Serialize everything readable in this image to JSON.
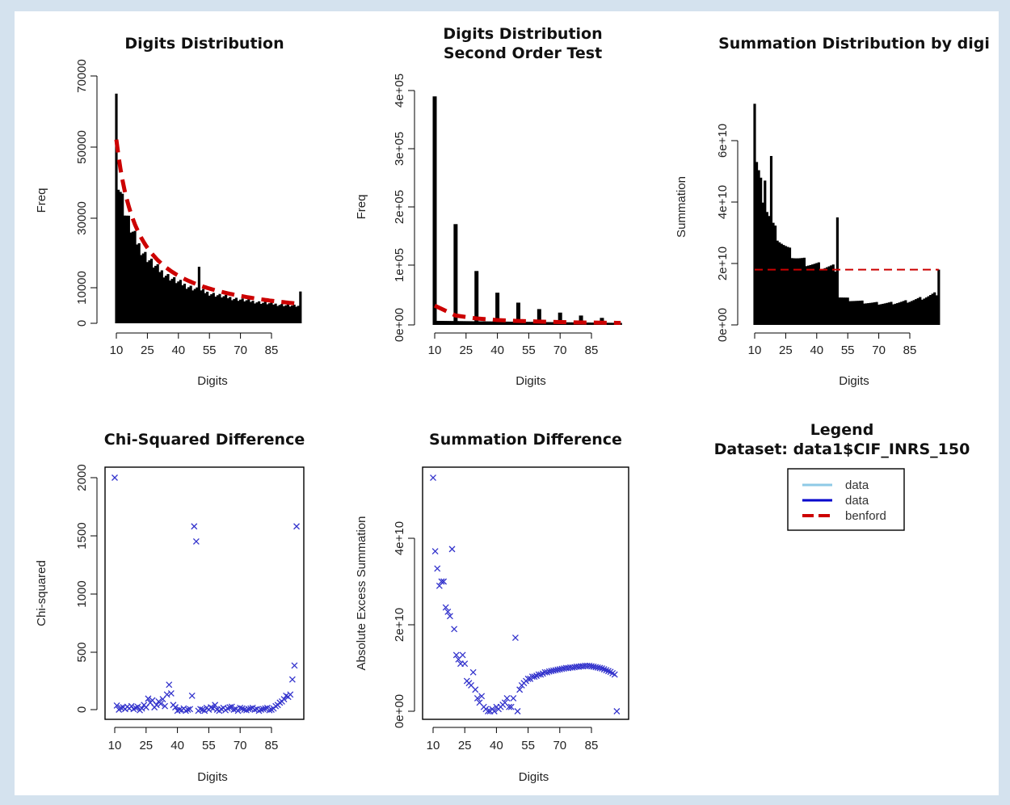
{
  "colors": {
    "bars": "#000000",
    "benford": "#cc0000",
    "points": "#3333cc",
    "data_light": "#8ecae6",
    "data_dark": "#0000cc"
  },
  "chart_data": [
    {
      "type": "bar",
      "title": "Digits Distribution",
      "xlabel": "Digits",
      "ylabel": "Freq",
      "x_ticks": [
        "10",
        "25",
        "40",
        "55",
        "70",
        "85"
      ],
      "y_ticks": [
        "0",
        "10000",
        "30000",
        "50000",
        "70000"
      ],
      "y_tick_values": [
        0,
        10000,
        30000,
        50000,
        70000
      ],
      "ylim": [
        0,
        70000
      ],
      "x_start": 10,
      "x_end": 99,
      "overlay": "benford",
      "spikes": [
        {
          "x": 10,
          "value": 65000
        },
        {
          "x": 50,
          "value": 16000
        },
        {
          "x": 99,
          "value": 9000
        }
      ],
      "legend": null
    },
    {
      "type": "bar",
      "title": "Digits Distribution",
      "subtitle": "Second Order Test",
      "xlabel": "Digits",
      "ylabel": "Freq",
      "x_ticks": [
        "10",
        "25",
        "40",
        "55",
        "70",
        "85"
      ],
      "y_ticks": [
        "0e+00",
        "1e+05",
        "2e+05",
        "3e+05",
        "4e+05"
      ],
      "y_tick_values": [
        0,
        100000,
        200000,
        300000,
        400000
      ],
      "ylim": [
        0,
        400000
      ],
      "x_start": 10,
      "x_end": 99,
      "spikes": [
        {
          "x": 10,
          "value": 390000
        },
        {
          "x": 20,
          "value": 172000
        },
        {
          "x": 30,
          "value": 92000
        },
        {
          "x": 40,
          "value": 55000
        },
        {
          "x": 50,
          "value": 38000
        },
        {
          "x": 60,
          "value": 27000
        },
        {
          "x": 70,
          "value": 21000
        },
        {
          "x": 80,
          "value": 16000
        },
        {
          "x": 90,
          "value": 12000
        }
      ],
      "benford_points": [
        {
          "x": 10,
          "value": 33000
        },
        {
          "x": 20,
          "value": 16000
        },
        {
          "x": 30,
          "value": 11000
        },
        {
          "x": 40,
          "value": 8300
        },
        {
          "x": 50,
          "value": 6700
        },
        {
          "x": 60,
          "value": 5600
        },
        {
          "x": 70,
          "value": 4800
        },
        {
          "x": 80,
          "value": 4200
        },
        {
          "x": 90,
          "value": 3700
        },
        {
          "x": 99,
          "value": 3400
        }
      ]
    },
    {
      "type": "bar",
      "title": "Summation Distribution by digi",
      "xlabel": "Digits",
      "ylabel": "Summation",
      "x_ticks": [
        "10",
        "25",
        "40",
        "55",
        "70",
        "85"
      ],
      "y_ticks": [
        "0e+00",
        "2e+10",
        "4e+10",
        "6e+10"
      ],
      "y_tick_values": [
        0,
        20000000000,
        40000000000,
        60000000000
      ],
      "ylim": [
        0,
        60000000000
      ],
      "x_start": 10,
      "x_end": 99,
      "benford_line": 18000000000,
      "spikes": [
        {
          "x": 10,
          "value": 72000000000
        },
        {
          "x": 15,
          "value": 47000000000
        },
        {
          "x": 18,
          "value": 55000000000
        },
        {
          "x": 50,
          "value": 35000000000
        },
        {
          "x": 99,
          "value": 18000000000
        }
      ]
    },
    {
      "type": "scatter",
      "title": "Chi-Squared Difference",
      "xlabel": "Digits",
      "ylabel": "Chi-squared",
      "x_ticks": [
        "10",
        "25",
        "40",
        "55",
        "70",
        "85"
      ],
      "y_ticks": [
        "0",
        "500",
        "1000",
        "1500",
        "2000"
      ],
      "y_tick_values": [
        0,
        500,
        1000,
        1500,
        2000
      ],
      "ylim": [
        -50,
        2050
      ],
      "points": [
        [
          10,
          2000
        ],
        [
          11,
          35
        ],
        [
          12,
          0
        ],
        [
          13,
          15
        ],
        [
          14,
          20
        ],
        [
          15,
          5
        ],
        [
          16,
          25
        ],
        [
          17,
          10
        ],
        [
          18,
          30
        ],
        [
          19,
          5
        ],
        [
          20,
          15
        ],
        [
          21,
          25
        ],
        [
          22,
          -5
        ],
        [
          23,
          10
        ],
        [
          24,
          40
        ],
        [
          25,
          20
        ],
        [
          26,
          95
        ],
        [
          27,
          60
        ],
        [
          28,
          80
        ],
        [
          29,
          20
        ],
        [
          30,
          40
        ],
        [
          31,
          70
        ],
        [
          32,
          50
        ],
        [
          33,
          90
        ],
        [
          34,
          30
        ],
        [
          35,
          130
        ],
        [
          36,
          215
        ],
        [
          37,
          140
        ],
        [
          38,
          40
        ],
        [
          39,
          20
        ],
        [
          40,
          -10
        ],
        [
          41,
          0
        ],
        [
          42,
          -5
        ],
        [
          43,
          10
        ],
        [
          44,
          -10
        ],
        [
          45,
          0
        ],
        [
          46,
          5
        ],
        [
          47,
          120
        ],
        [
          48,
          1580
        ],
        [
          49,
          1450
        ],
        [
          50,
          -10
        ],
        [
          51,
          5
        ],
        [
          52,
          0
        ],
        [
          53,
          -10
        ],
        [
          54,
          15
        ],
        [
          55,
          0
        ],
        [
          56,
          20
        ],
        [
          57,
          10
        ],
        [
          58,
          40
        ],
        [
          59,
          0
        ],
        [
          60,
          -10
        ],
        [
          61,
          5
        ],
        [
          62,
          15
        ],
        [
          63,
          -5
        ],
        [
          64,
          10
        ],
        [
          65,
          20
        ],
        [
          66,
          25
        ],
        [
          67,
          0
        ],
        [
          68,
          5
        ],
        [
          69,
          -10
        ],
        [
          70,
          15
        ],
        [
          71,
          10
        ],
        [
          72,
          0
        ],
        [
          73,
          -5
        ],
        [
          74,
          5
        ],
        [
          75,
          10
        ],
        [
          76,
          15
        ],
        [
          77,
          0
        ],
        [
          78,
          5
        ],
        [
          79,
          -10
        ],
        [
          80,
          0
        ],
        [
          81,
          5
        ],
        [
          82,
          10
        ],
        [
          83,
          15
        ],
        [
          84,
          -5
        ],
        [
          85,
          0
        ],
        [
          86,
          10
        ],
        [
          87,
          30
        ],
        [
          88,
          40
        ],
        [
          89,
          60
        ],
        [
          90,
          70
        ],
        [
          91,
          90
        ],
        [
          92,
          120
        ],
        [
          93,
          110
        ],
        [
          94,
          130
        ],
        [
          95,
          260
        ],
        [
          96,
          380
        ],
        [
          97,
          1580
        ]
      ]
    },
    {
      "type": "scatter",
      "title": "Summation Difference",
      "xlabel": "Digits",
      "ylabel": "Absolute Excess Summation",
      "x_ticks": [
        "10",
        "25",
        "40",
        "55",
        "70",
        "85"
      ],
      "y_ticks": [
        "0e+00",
        "2e+10",
        "4e+10"
      ],
      "y_tick_values": [
        0,
        20000000000,
        40000000000
      ],
      "ylim": [
        -1500000000,
        57000000000
      ],
      "points": [
        [
          10,
          54000000000
        ],
        [
          11,
          37000000000
        ],
        [
          12,
          33000000000
        ],
        [
          13,
          29000000000
        ],
        [
          14,
          30000000000
        ],
        [
          15,
          30000000000
        ],
        [
          16,
          24000000000
        ],
        [
          17,
          23000000000
        ],
        [
          18,
          22000000000
        ],
        [
          19,
          37500000000
        ],
        [
          20,
          19000000000
        ],
        [
          21,
          13000000000
        ],
        [
          22,
          12000000000
        ],
        [
          23,
          11000000000
        ],
        [
          24,
          13000000000
        ],
        [
          25,
          11000000000
        ],
        [
          26,
          7000000000
        ],
        [
          27,
          6500000000
        ],
        [
          28,
          6000000000
        ],
        [
          29,
          9000000000
        ],
        [
          30,
          5000000000
        ],
        [
          31,
          3000000000
        ],
        [
          32,
          2000000000
        ],
        [
          33,
          3500000000
        ],
        [
          34,
          1000000000
        ],
        [
          35,
          500000000
        ],
        [
          36,
          0
        ],
        [
          37,
          0
        ],
        [
          38,
          500000000
        ],
        [
          39,
          0
        ],
        [
          40,
          1000000000
        ],
        [
          41,
          500000000
        ],
        [
          42,
          1000000000
        ],
        [
          43,
          1500000000
        ],
        [
          44,
          2000000000
        ],
        [
          45,
          3000000000
        ],
        [
          46,
          1000000000
        ],
        [
          47,
          1000000000
        ],
        [
          48,
          3000000000
        ],
        [
          49,
          17000000000
        ],
        [
          50,
          0
        ],
        [
          51,
          5000000000
        ],
        [
          52,
          6000000000
        ],
        [
          53,
          6500000000
        ],
        [
          54,
          7000000000
        ],
        [
          55,
          7500000000
        ],
        [
          56,
          7500000000
        ],
        [
          57,
          8000000000
        ],
        [
          58,
          8000000000
        ],
        [
          59,
          8200000000
        ],
        [
          60,
          8500000000
        ],
        [
          61,
          8500000000
        ],
        [
          62,
          8700000000
        ],
        [
          63,
          9000000000
        ],
        [
          64,
          9000000000
        ],
        [
          65,
          9200000000
        ],
        [
          66,
          9300000000
        ],
        [
          67,
          9400000000
        ],
        [
          68,
          9500000000
        ],
        [
          69,
          9600000000
        ],
        [
          70,
          9700000000
        ],
        [
          71,
          9800000000
        ],
        [
          72,
          9900000000
        ],
        [
          73,
          10000000000
        ],
        [
          74,
          10000000000
        ],
        [
          75,
          10100000000
        ],
        [
          76,
          10100000000
        ],
        [
          77,
          10200000000
        ],
        [
          78,
          10300000000
        ],
        [
          79,
          10300000000
        ],
        [
          80,
          10400000000
        ],
        [
          81,
          10400000000
        ],
        [
          82,
          10500000000
        ],
        [
          83,
          10500000000
        ],
        [
          84,
          10500000000
        ],
        [
          85,
          10400000000
        ],
        [
          86,
          10300000000
        ],
        [
          87,
          10200000000
        ],
        [
          88,
          10100000000
        ],
        [
          89,
          10000000000
        ],
        [
          90,
          9900000000
        ],
        [
          91,
          9700000000
        ],
        [
          92,
          9500000000
        ],
        [
          93,
          9300000000
        ],
        [
          94,
          9100000000
        ],
        [
          95,
          8800000000
        ],
        [
          96,
          8500000000
        ],
        [
          97,
          0
        ]
      ]
    }
  ],
  "legend_panel": {
    "title": "Legend",
    "subtitle": "Dataset: data1$CIF_INRS_150",
    "items": [
      {
        "label": "data",
        "color": "#8ecae6",
        "style": "solid"
      },
      {
        "label": "data",
        "color": "#0000cc",
        "style": "solid"
      },
      {
        "label": "benford",
        "color": "#cc0000",
        "style": "dashed"
      }
    ]
  }
}
